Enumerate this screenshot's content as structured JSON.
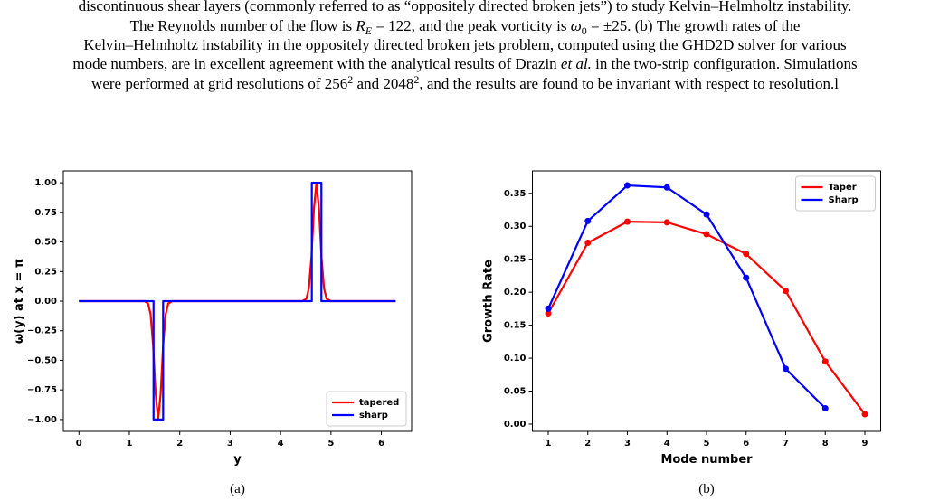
{
  "caption": {
    "lines": [
      [
        "discontinuous shear layers (commonly referred to as “oppositely directed broken jets”) to study Kelvin–Helmholtz instability."
      ],
      [
        "The Reynolds number of the flow is ",
        "R",
        "E",
        " = 122, and the peak vorticity is ",
        "ω",
        "0",
        " = ±25. (b) The growth rates of the"
      ],
      [
        "Kelvin–Helmholtz instability in the oppositely directed broken jets problem, computed using the GHD2D solver for various"
      ],
      [
        "mode numbers, are in excellent agreement with the analytical results of Drazin ",
        "et al.",
        " in the two-strip configuration. Simulations"
      ],
      [
        "were performed at grid resolutions of 256",
        "2",
        " and 2048",
        "2",
        ", and the results are found to be invariant with respect to resolution.l"
      ]
    ]
  },
  "chart_data": [
    {
      "type": "line",
      "caption": "(a)",
      "x_label": "y",
      "y_label": "ω(y) at x = π",
      "xlim": [
        -0.31,
        6.6
      ],
      "ylim": [
        -1.1,
        1.1
      ],
      "xticks": [
        0,
        1,
        2,
        3,
        4,
        5,
        6
      ],
      "yticks": [
        {
          "value": 1,
          "label": "1.00"
        },
        {
          "value": 0.75,
          "label": "0.75"
        },
        {
          "value": 0.5,
          "label": "0.50"
        },
        {
          "value": 0.25,
          "label": "0.25"
        },
        {
          "value": 0,
          "label": "0.00"
        },
        {
          "value": -0.25,
          "label": "−0.25"
        },
        {
          "value": -0.5,
          "label": "−0.50"
        },
        {
          "value": -0.75,
          "label": "−0.75"
        },
        {
          "value": -1,
          "label": "−1.00"
        }
      ],
      "legend": "lower right",
      "markers": false,
      "series": [
        {
          "name": "tapered",
          "color": "#ff0000",
          "x": [
            0,
            1.3,
            1.371,
            1.421,
            1.471,
            1.521,
            1.571,
            1.621,
            1.671,
            1.721,
            1.771,
            1.85,
            4.43,
            4.512,
            4.562,
            4.612,
            4.662,
            4.712,
            4.762,
            4.812,
            4.862,
            4.912,
            5.0,
            6.283
          ],
          "values": [
            0,
            0,
            -0.02,
            -0.11,
            -0.37,
            -0.78,
            -1,
            -0.78,
            -0.37,
            -0.11,
            -0.02,
            0,
            0,
            0.02,
            0.11,
            0.37,
            0.78,
            1,
            0.78,
            0.37,
            0.11,
            0.02,
            0,
            0
          ]
        },
        {
          "name": "sharp",
          "color": "#0000ff",
          "x": [
            0,
            1.48,
            1.48,
            1.67,
            1.67,
            4.62,
            4.62,
            4.81,
            4.81,
            6.283
          ],
          "values": [
            0,
            0,
            -1,
            -1,
            0,
            0,
            1,
            1,
            0,
            0
          ]
        }
      ]
    },
    {
      "type": "line",
      "caption": "(b)",
      "x_label": "Mode number",
      "y_label": "Growth Rate",
      "xlim": [
        0.6,
        9.4
      ],
      "ylim": [
        -0.011,
        0.384
      ],
      "xticks": [
        1,
        2,
        3,
        4,
        5,
        6,
        7,
        8,
        9
      ],
      "yticks": [
        {
          "value": 0,
          "label": "0.00"
        },
        {
          "value": 0.05,
          "label": "0.05"
        },
        {
          "value": 0.1,
          "label": "0.10"
        },
        {
          "value": 0.15,
          "label": "0.15"
        },
        {
          "value": 0.2,
          "label": "0.20"
        },
        {
          "value": 0.25,
          "label": "0.25"
        },
        {
          "value": 0.3,
          "label": "0.30"
        },
        {
          "value": 0.35,
          "label": "0.35"
        }
      ],
      "legend": "upper right",
      "markers": true,
      "series": [
        {
          "name": "Taper",
          "color": "#ff0000",
          "x": [
            1,
            2,
            3,
            4,
            5,
            6,
            7,
            8,
            9
          ],
          "values": [
            0.168,
            0.275,
            0.307,
            0.306,
            0.288,
            0.258,
            0.202,
            0.095,
            0.015
          ]
        },
        {
          "name": "Sharp",
          "color": "#0000ff",
          "x": [
            1,
            2,
            3,
            4,
            5,
            6,
            7,
            8
          ],
          "values": [
            0.175,
            0.308,
            0.362,
            0.359,
            0.318,
            0.222,
            0.084,
            0.024
          ]
        }
      ]
    }
  ]
}
